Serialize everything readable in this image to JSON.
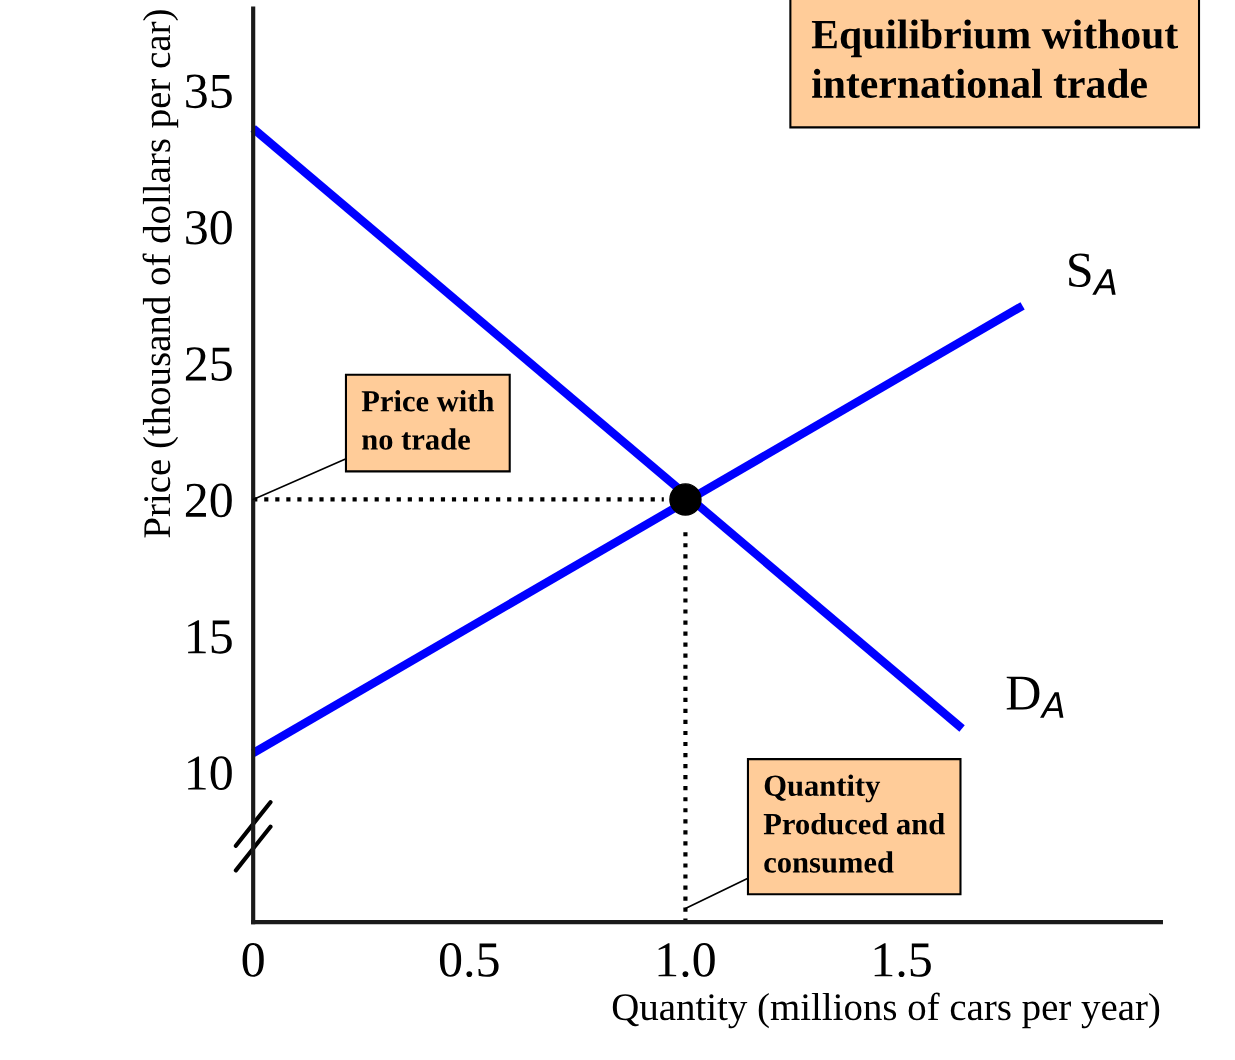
{
  "chart_data": {
    "type": "line",
    "title": "Equilibrium without\ninternational trade",
    "xlabel": "Quantity (millions of cars per year)",
    "ylabel": "Price (thousand of dollars per car)",
    "xlim": [
      0,
      2.1
    ],
    "ylim": [
      4.5,
      38
    ],
    "xticks": [
      {
        "value": 0,
        "label": "0"
      },
      0.5,
      {
        "value": 1.0,
        "label": "1.0"
      },
      1.5
    ],
    "yticks": [
      10,
      15,
      20,
      25,
      30,
      35
    ],
    "grid": false,
    "legend": false,
    "series": [
      {
        "name": "S$_{A}$",
        "color": "#0000ff",
        "x": [
          0,
          1.78
        ],
        "values": [
          10.7,
          27.1
        ],
        "line_style": "solid",
        "marker": "none"
      },
      {
        "name": "D$_{A}$",
        "color": "#0000ff",
        "x": [
          0,
          1.64
        ],
        "values": [
          33.6,
          11.6
        ],
        "line_style": "solid",
        "marker": "none"
      },
      {
        "color": "#000000",
        "x": [
          0,
          0.95
        ],
        "values": [
          20,
          20
        ],
        "line_style": "dotted",
        "marker": "none"
      },
      {
        "color": "#000000",
        "x": [
          1.0,
          1.0
        ],
        "values": [
          18.8,
          4.5
        ],
        "line_style": "dotted",
        "marker": "none"
      },
      {
        "type": "scatter",
        "color": "#000000",
        "x": [
          1.0
        ],
        "values": [
          20
        ],
        "marker": "circle"
      }
    ],
    "annotations": [
      {
        "text": "Price with\nno trade",
        "x": 0,
        "y": 20
      },
      {
        "text": "Quantity\nProduced and\nconsumed",
        "x": 1.0,
        "y": 5
      }
    ]
  }
}
